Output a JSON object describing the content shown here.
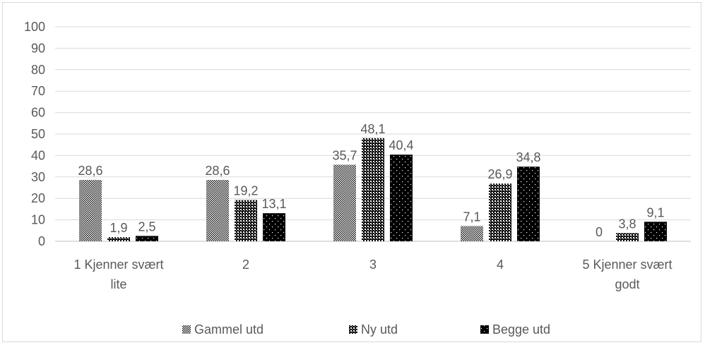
{
  "chart_data": {
    "type": "bar",
    "categories": [
      [
        "1 Kjenner svært",
        "lite"
      ],
      [
        "2"
      ],
      [
        "3"
      ],
      [
        "4"
      ],
      [
        "5 Kjenner svært",
        "godt"
      ]
    ],
    "series": [
      {
        "name": "Gammel utd",
        "values": [
          28.6,
          28.6,
          35.7,
          7.1,
          0
        ],
        "labels": [
          "28,6",
          "28,6",
          "35,7",
          "7,1",
          "0"
        ],
        "pattern": "fine-check"
      },
      {
        "name": "Ny utd",
        "values": [
          1.9,
          19.2,
          48.1,
          26.9,
          3.8
        ],
        "labels": [
          "1,9",
          "19,2",
          "48,1",
          "26,9",
          "3,8"
        ],
        "pattern": "coarse-check"
      },
      {
        "name": "Begge utd",
        "values": [
          2.5,
          13.1,
          40.4,
          34.8,
          9.1
        ],
        "labels": [
          "2,5",
          "13,1",
          "40,4",
          "34,8",
          "9,1"
        ],
        "pattern": "dots"
      }
    ],
    "ylim": [
      0,
      100
    ],
    "yticks": [
      0,
      10,
      20,
      30,
      40,
      50,
      60,
      70,
      80,
      90,
      100
    ],
    "grid": true,
    "legend_position": "bottom"
  }
}
